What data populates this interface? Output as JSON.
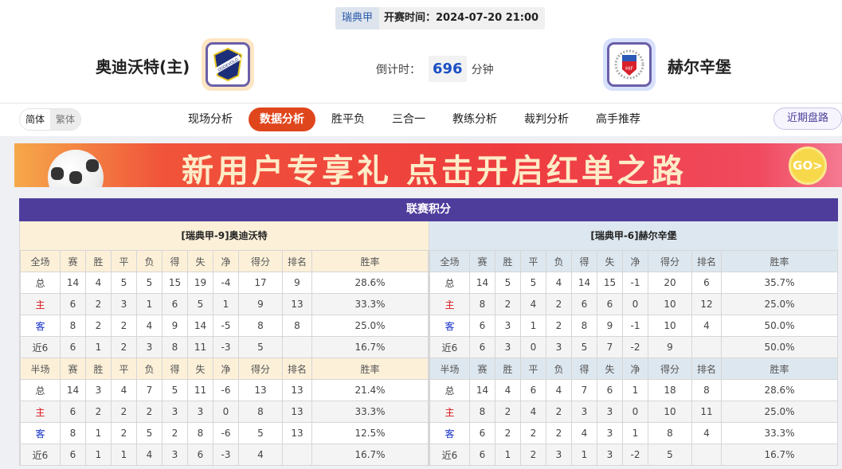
{
  "header": {
    "league": "瑞典甲",
    "start_time": "开赛时间：2024-07-20 21:00",
    "home_team": "奥迪沃特(主)",
    "away_team": "赫尔辛堡",
    "home_logo_text": [
      "IS",
      "ODDEVOLD",
      "1932"
    ],
    "away_logo_text": "HIF",
    "countdown_label": "倒计时：",
    "countdown_value": "696",
    "countdown_unit": "分钟"
  },
  "nav": {
    "lang": [
      "简体",
      "繁体"
    ],
    "tabs": [
      "现场分析",
      "数据分析",
      "胜平负",
      "三合一",
      "教练分析",
      "裁判分析",
      "高手推荐"
    ],
    "active_tab": "数据分析",
    "recent_button": "近期盘路"
  },
  "banner": {
    "text": "新用户专享礼 点击开启红单之路",
    "go": "GO>"
  },
  "colors": {
    "title_bar": "#4f3d9c",
    "home_header": "#fcf0d9",
    "away_header": "#dde7ef",
    "active_tab": "#e0461c",
    "home_label": "#d8141a",
    "away_label": "#1530c8"
  },
  "standings": {
    "title": "联赛积分",
    "teams": [
      {
        "name": "[瑞典甲-9]奥迪沃特",
        "full": {
          "header": [
            "全场",
            "赛",
            "胜",
            "平",
            "负",
            "得",
            "失",
            "净",
            "得分",
            "排名",
            "胜率"
          ],
          "rows": [
            [
              "总",
              "14",
              "4",
              "5",
              "5",
              "15",
              "19",
              "-4",
              "17",
              "9",
              "28.6%"
            ],
            [
              "主",
              "6",
              "2",
              "3",
              "1",
              "6",
              "5",
              "1",
              "9",
              "13",
              "33.3%"
            ],
            [
              "客",
              "8",
              "2",
              "2",
              "4",
              "9",
              "14",
              "-5",
              "8",
              "8",
              "25.0%"
            ],
            [
              "近6",
              "6",
              "1",
              "2",
              "3",
              "8",
              "11",
              "-3",
              "5",
              "",
              "16.7%"
            ]
          ]
        },
        "half": {
          "header": [
            "半场",
            "赛",
            "胜",
            "平",
            "负",
            "得",
            "失",
            "净",
            "得分",
            "排名",
            "胜率"
          ],
          "rows": [
            [
              "总",
              "14",
              "3",
              "4",
              "7",
              "5",
              "11",
              "-6",
              "13",
              "13",
              "21.4%"
            ],
            [
              "主",
              "6",
              "2",
              "2",
              "2",
              "3",
              "3",
              "0",
              "8",
              "13",
              "33.3%"
            ],
            [
              "客",
              "8",
              "1",
              "2",
              "5",
              "2",
              "8",
              "-6",
              "5",
              "13",
              "12.5%"
            ],
            [
              "近6",
              "6",
              "1",
              "1",
              "4",
              "3",
              "6",
              "-3",
              "4",
              "",
              "16.7%"
            ]
          ]
        }
      },
      {
        "name": "[瑞典甲-6]赫尔辛堡",
        "full": {
          "header": [
            "全场",
            "赛",
            "胜",
            "平",
            "负",
            "得",
            "失",
            "净",
            "得分",
            "排名",
            "胜率"
          ],
          "rows": [
            [
              "总",
              "14",
              "5",
              "5",
              "4",
              "14",
              "15",
              "-1",
              "20",
              "6",
              "35.7%"
            ],
            [
              "主",
              "8",
              "2",
              "4",
              "2",
              "6",
              "6",
              "0",
              "10",
              "12",
              "25.0%"
            ],
            [
              "客",
              "6",
              "3",
              "1",
              "2",
              "8",
              "9",
              "-1",
              "10",
              "4",
              "50.0%"
            ],
            [
              "近6",
              "6",
              "3",
              "0",
              "3",
              "5",
              "7",
              "-2",
              "9",
              "",
              "50.0%"
            ]
          ]
        },
        "half": {
          "header": [
            "半场",
            "赛",
            "胜",
            "平",
            "负",
            "得",
            "失",
            "净",
            "得分",
            "排名",
            "胜率"
          ],
          "rows": [
            [
              "总",
              "14",
              "4",
              "6",
              "4",
              "7",
              "6",
              "1",
              "18",
              "8",
              "28.6%"
            ],
            [
              "主",
              "8",
              "2",
              "4",
              "2",
              "3",
              "3",
              "0",
              "10",
              "11",
              "25.0%"
            ],
            [
              "客",
              "6",
              "2",
              "2",
              "2",
              "4",
              "3",
              "1",
              "8",
              "4",
              "33.3%"
            ],
            [
              "近6",
              "6",
              "1",
              "2",
              "3",
              "1",
              "3",
              "-2",
              "5",
              "",
              "16.7%"
            ]
          ]
        }
      }
    ]
  }
}
